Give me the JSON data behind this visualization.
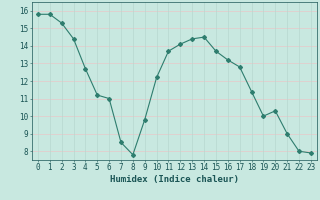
{
  "x": [
    0,
    1,
    2,
    3,
    4,
    5,
    6,
    7,
    8,
    9,
    10,
    11,
    12,
    13,
    14,
    15,
    16,
    17,
    18,
    19,
    20,
    21,
    22,
    23
  ],
  "y": [
    15.8,
    15.8,
    15.3,
    14.4,
    12.7,
    11.2,
    11.0,
    8.5,
    7.8,
    9.8,
    12.2,
    13.7,
    14.1,
    14.4,
    14.5,
    13.7,
    13.2,
    12.8,
    11.4,
    10.0,
    10.3,
    9.0,
    8.0,
    7.9
  ],
  "line_color": "#2e7d6e",
  "marker": "D",
  "marker_size": 2,
  "bg_color": "#c8e8e0",
  "plot_bg_color": "#c8e8e0",
  "grid_color_h": "#e8c8c8",
  "grid_color_v": "#b8d8d0",
  "xlabel": "Humidex (Indice chaleur)",
  "xlim": [
    -0.5,
    23.5
  ],
  "ylim": [
    7.5,
    16.5
  ],
  "yticks": [
    8,
    9,
    10,
    11,
    12,
    13,
    14,
    15,
    16
  ],
  "xticks": [
    0,
    1,
    2,
    3,
    4,
    5,
    6,
    7,
    8,
    9,
    10,
    11,
    12,
    13,
    14,
    15,
    16,
    17,
    18,
    19,
    20,
    21,
    22,
    23
  ],
  "font_color": "#1a5555",
  "xlabel_fontsize": 6.5,
  "tick_fontsize": 5.5,
  "linewidth": 0.8
}
